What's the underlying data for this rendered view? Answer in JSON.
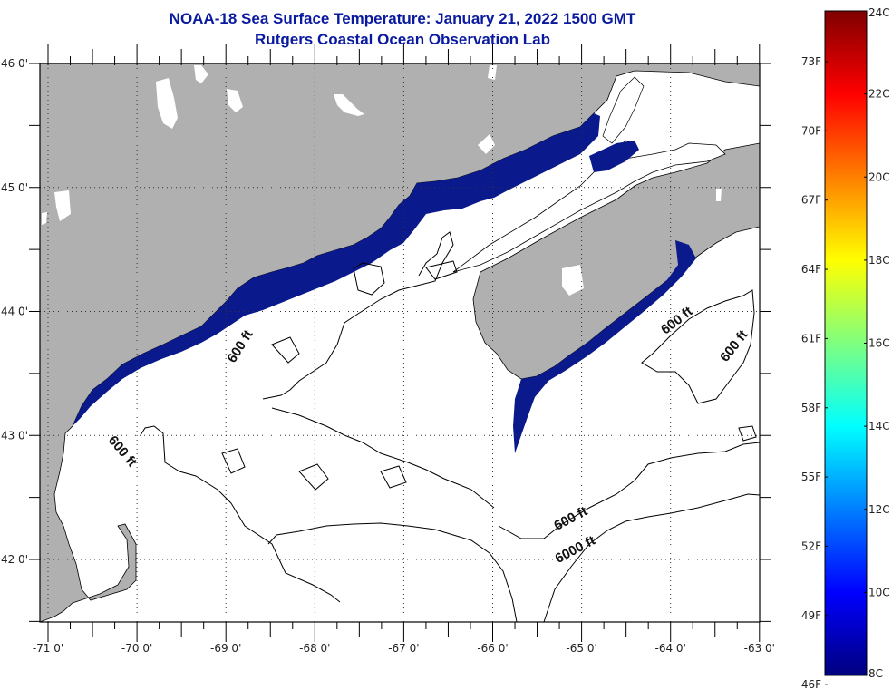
{
  "header": {
    "title": "NOAA-18 Sea Surface Temperature:  January 21, 2022 1500 GMT",
    "subtitle": "Rutgers Coastal Ocean Observation Lab"
  },
  "map": {
    "lon_range": [
      -71.1,
      -63.0
    ],
    "lat_range": [
      41.5,
      46.0
    ],
    "x_ticks": [
      {
        "value": -71,
        "label": "-71 0'"
      },
      {
        "value": -70,
        "label": "-70 0'"
      },
      {
        "value": -69,
        "label": "-69 0'"
      },
      {
        "value": -68,
        "label": "-68 0'"
      },
      {
        "value": -67,
        "label": "-67 0'"
      },
      {
        "value": -66,
        "label": "-66 0'"
      },
      {
        "value": -65,
        "label": "-65 0'"
      },
      {
        "value": -64,
        "label": "-64 0'"
      },
      {
        "value": -63,
        "label": "-63 0'"
      }
    ],
    "y_ticks": [
      {
        "value": 46,
        "label": "46 0'"
      },
      {
        "value": 45,
        "label": "45 0'"
      },
      {
        "value": 44,
        "label": "44 0'"
      },
      {
        "value": 43,
        "label": "43 0'"
      },
      {
        "value": 42,
        "label": "42 0'"
      }
    ],
    "contour_labels": [
      {
        "text": "600 ft",
        "lon": -68.8,
        "lat": 43.7
      },
      {
        "text": "600 ft",
        "lon": -70.2,
        "lat": 42.85
      },
      {
        "text": "600 ft",
        "lon": -63.9,
        "lat": 43.9
      },
      {
        "text": "600 ft",
        "lon": -63.25,
        "lat": 43.7
      },
      {
        "text": "600 ft",
        "lon": -65.1,
        "lat": 42.3
      },
      {
        "text": "6000 ft",
        "lon": -65.05,
        "lat": 42.05
      }
    ],
    "colors": {
      "land": "#b0b0b0",
      "water_no_data": "#ffffff",
      "sst_cold": "#0a1a8c",
      "contour": "#000000",
      "grid": "#333333"
    }
  },
  "colorbar": {
    "f_labels": [
      {
        "label": "73F",
        "value": 73
      },
      {
        "label": "70F",
        "value": 70
      },
      {
        "label": "67F",
        "value": 67
      },
      {
        "label": "64F",
        "value": 64
      },
      {
        "label": "61F",
        "value": 61
      },
      {
        "label": "58F",
        "value": 58
      },
      {
        "label": "55F",
        "value": 55
      },
      {
        "label": "52F",
        "value": 52
      },
      {
        "label": "49F",
        "value": 49
      },
      {
        "label": "46F",
        "value": 46
      }
    ],
    "c_labels": [
      {
        "label": "24C",
        "value": 24
      },
      {
        "label": "22C",
        "value": 22
      },
      {
        "label": "20C",
        "value": 20
      },
      {
        "label": "18C",
        "value": 18
      },
      {
        "label": "16C",
        "value": 16
      },
      {
        "label": "14C",
        "value": 14
      },
      {
        "label": "12C",
        "value": 12
      },
      {
        "label": "10C",
        "value": 10
      },
      {
        "label": "8C",
        "value": 8
      }
    ],
    "range_c": [
      8,
      24
    ],
    "stops": [
      "#00007f",
      "#0000ff",
      "#007fff",
      "#00ffff",
      "#7fff7f",
      "#ffff00",
      "#ff7f00",
      "#ff0000",
      "#7f0000"
    ]
  }
}
